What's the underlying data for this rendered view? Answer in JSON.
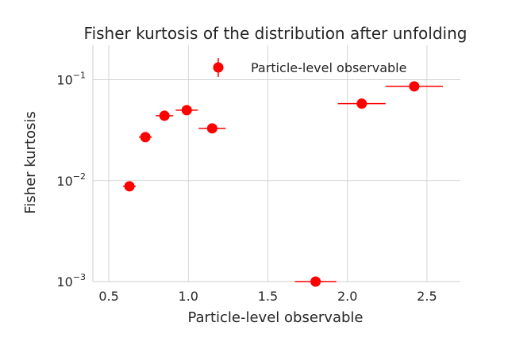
{
  "chart_data": {
    "type": "scatter",
    "title": "Fisher kurtosis of the distribution after unfolding",
    "xlabel": "Particle-level observable",
    "ylabel": "Fisher kurtosis",
    "xlim": [
      0.4,
      2.71
    ],
    "ylim": [
      0.001,
      0.22
    ],
    "yscale": "log",
    "grid": true,
    "xticks": [
      0.5,
      1.0,
      1.5,
      2.0,
      2.5
    ],
    "xtick_labels": [
      "0.5",
      "1.0",
      "1.5",
      "2.0",
      "2.5"
    ],
    "yticks": [
      0.001,
      0.01,
      0.1
    ],
    "ytick_labels": [
      {
        "base": "10",
        "exp": "−3"
      },
      {
        "base": "10",
        "exp": "−2"
      },
      {
        "base": "10",
        "exp": "−1"
      }
    ],
    "legend_position": "top-right",
    "color": "#ff0000",
    "series": [
      {
        "name": "Particle-level observable",
        "points": [
          {
            "x": 0.63,
            "y": 0.0088,
            "xerr": 0.04
          },
          {
            "x": 0.73,
            "y": 0.027,
            "xerr": 0.04
          },
          {
            "x": 0.85,
            "y": 0.044,
            "xerr": 0.055
          },
          {
            "x": 0.99,
            "y": 0.05,
            "xerr": 0.07
          },
          {
            "x": 1.15,
            "y": 0.033,
            "xerr": 0.085
          },
          {
            "x": 1.8,
            "y": 0.001,
            "xerr": 0.13
          },
          {
            "x": 2.09,
            "y": 0.058,
            "xerr": 0.15
          },
          {
            "x": 2.42,
            "y": 0.086,
            "xerr": 0.18
          }
        ]
      }
    ]
  }
}
